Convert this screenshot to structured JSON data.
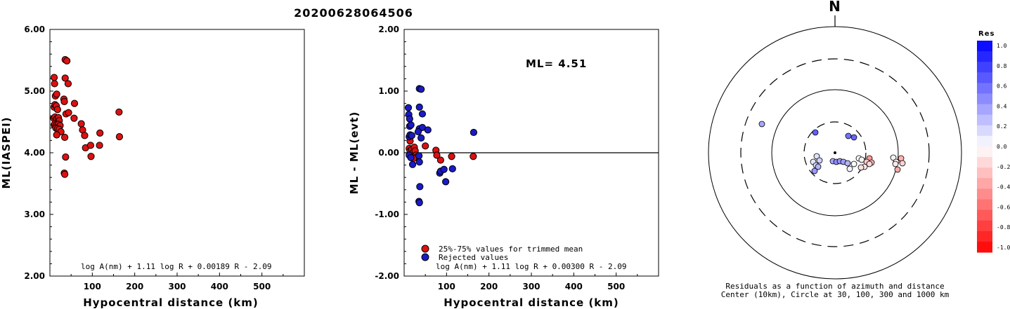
{
  "title": "20200628064506",
  "chart_data": [
    {
      "type": "scatter",
      "ylabel": "ML(IASPEI)",
      "xlabel": "Hypocentral distance (km)",
      "xlim": [
        0,
        600
      ],
      "ylim": [
        2.0,
        6.0
      ],
      "x_ticks": [
        "100",
        "200",
        "300",
        "400",
        "500"
      ],
      "y_ticks": [
        "2.00",
        "3.00",
        "4.00",
        "5.00",
        "6.00"
      ],
      "formula": "log A(nm) + 1.11 log R + 0.00189 R - 2.09",
      "marker_color": "#dd1111",
      "series": [
        {
          "points": [
            [
              10,
              5.22
            ],
            [
              11,
              5.12
            ],
            [
              13,
              4.92
            ],
            [
              16,
              4.95
            ],
            [
              10,
              4.74
            ],
            [
              12,
              4.78
            ],
            [
              15,
              4.76
            ],
            [
              18,
              4.7
            ],
            [
              9,
              4.56
            ],
            [
              12,
              4.58
            ],
            [
              16,
              4.55
            ],
            [
              20,
              4.57
            ],
            [
              22,
              4.52
            ],
            [
              10,
              4.45
            ],
            [
              12,
              4.47
            ],
            [
              16,
              4.46
            ],
            [
              20,
              4.46
            ],
            [
              24,
              4.44
            ],
            [
              14,
              4.4
            ],
            [
              18,
              4.39
            ],
            [
              22,
              4.38
            ],
            [
              26,
              4.34
            ],
            [
              16,
              4.29
            ],
            [
              33,
              4.87
            ],
            [
              34,
              4.83
            ],
            [
              36,
              5.51
            ],
            [
              40,
              5.49
            ],
            [
              36,
              5.21
            ],
            [
              43,
              5.12
            ],
            [
              38,
              4.63
            ],
            [
              44,
              4.65
            ],
            [
              35,
              4.25
            ],
            [
              37,
              3.93
            ],
            [
              34,
              3.67
            ],
            [
              35,
              3.65
            ],
            [
              58,
              4.8
            ],
            [
              57,
              4.56
            ],
            [
              74,
              4.47
            ],
            [
              77,
              4.37
            ],
            [
              82,
              4.28
            ],
            [
              84,
              4.08
            ],
            [
              96,
              4.12
            ],
            [
              97,
              3.94
            ],
            [
              117,
              4.12
            ],
            [
              118,
              4.32
            ],
            [
              163,
              4.66
            ],
            [
              164,
              4.26
            ]
          ]
        }
      ]
    },
    {
      "type": "scatter",
      "ylabel": "ML - ML(evt)",
      "xlabel": "Hypocentral distance (km)",
      "xlim": [
        0,
        600
      ],
      "ylim": [
        -2.0,
        2.0
      ],
      "x_ticks": [
        "100",
        "200",
        "300",
        "400",
        "500"
      ],
      "y_ticks": [
        "-2.00",
        "-1.00",
        "0.00",
        "1.00",
        "2.00"
      ],
      "annotation": "ML= 4.51",
      "formula": "log A(nm) + 1.11 log R + 0.00300 R - 2.09",
      "legend": [
        "25%-75% values for trimmed mean",
        "Rejected values"
      ],
      "colors": {
        "trimmed": "#dd1111",
        "rejected": "#1a1ac8"
      },
      "series": [
        {
          "name": "25%-75% values for trimmed mean",
          "points": [
            [
              12,
              0.07
            ],
            [
              14,
              0.03
            ],
            [
              16,
              -0.04
            ],
            [
              18,
              0.05
            ],
            [
              20,
              -0.02
            ],
            [
              22,
              0.01
            ],
            [
              24,
              0.09
            ],
            [
              26,
              0.03
            ],
            [
              28,
              -0.04
            ],
            [
              30,
              -0.07
            ],
            [
              14,
              0.19
            ],
            [
              22,
              -0.09
            ],
            [
              50,
              0.11
            ],
            [
              75,
              0.04
            ],
            [
              77,
              -0.04
            ],
            [
              86,
              -0.12
            ],
            [
              112,
              -0.06
            ],
            [
              163,
              -0.06
            ]
          ]
        },
        {
          "name": "Rejected values",
          "points": [
            [
              10,
              0.73
            ],
            [
              11,
              0.62
            ],
            [
              13,
              0.43
            ],
            [
              16,
              0.45
            ],
            [
              12,
              0.26
            ],
            [
              14,
              0.29
            ],
            [
              18,
              0.28
            ],
            [
              12,
              -0.04
            ],
            [
              16,
              -0.08
            ],
            [
              20,
              -0.19
            ],
            [
              13,
              0.55
            ],
            [
              36,
              1.04
            ],
            [
              40,
              1.03
            ],
            [
              36,
              0.74
            ],
            [
              43,
              0.63
            ],
            [
              36,
              0.39
            ],
            [
              43,
              0.41
            ],
            [
              33,
              0.34
            ],
            [
              56,
              0.37
            ],
            [
              40,
              0.24
            ],
            [
              35,
              -0.05
            ],
            [
              36,
              -0.15
            ],
            [
              37,
              -0.55
            ],
            [
              35,
              -0.79
            ],
            [
              36,
              -0.81
            ],
            [
              84,
              -0.33
            ],
            [
              86,
              -0.3
            ],
            [
              94,
              -0.27
            ],
            [
              98,
              -0.47
            ],
            [
              114,
              -0.26
            ],
            [
              164,
              0.33
            ]
          ]
        }
      ]
    },
    {
      "type": "scatter",
      "north_label": "N",
      "caption_1": "Residuals as a function of azimuth and distance",
      "caption_2": "Center (10km), Circle at 30, 100, 300 and 1000 km",
      "ring_distances_km": [
        30,
        100,
        300,
        1000
      ],
      "colorbar_title": "Res",
      "colorbar_ticks": [
        "1.0",
        "0.8",
        "0.6",
        "0.4",
        "0.2",
        "0.0",
        "-0.2",
        "-0.4",
        "-0.6",
        "-0.8",
        "-1.0"
      ],
      "stations": [
        {
          "res": 0.35,
          "dx": -104,
          "dy": -41
        },
        {
          "res": 0.62,
          "dx": -28,
          "dy": -29
        },
        {
          "res": 0.55,
          "dx": 19,
          "dy": -24
        },
        {
          "res": 0.6,
          "dx": 27,
          "dy": -22
        },
        {
          "res": 0.12,
          "dx": -26,
          "dy": 5
        },
        {
          "res": 0.18,
          "dx": -22,
          "dy": 11
        },
        {
          "res": 0.1,
          "dx": -31,
          "dy": 13
        },
        {
          "res": 0.15,
          "dx": -27,
          "dy": 18
        },
        {
          "res": 0.3,
          "dx": -24,
          "dy": 20
        },
        {
          "res": 0.4,
          "dx": -29,
          "dy": 26
        },
        {
          "res": 0.35,
          "dx": -3,
          "dy": 12
        },
        {
          "res": 0.45,
          "dx": 2,
          "dy": 13
        },
        {
          "res": 0.42,
          "dx": 7,
          "dy": 12
        },
        {
          "res": 0.38,
          "dx": 12,
          "dy": 13
        },
        {
          "res": 0.3,
          "dx": 18,
          "dy": 15
        },
        {
          "res": 0.05,
          "dx": 21,
          "dy": 23
        },
        {
          "res": 0.02,
          "dx": 27,
          "dy": 16
        },
        {
          "res": 0.0,
          "dx": 34,
          "dy": 8
        },
        {
          "res": -0.05,
          "dx": 38,
          "dy": 10
        },
        {
          "res": -0.08,
          "dx": 42,
          "dy": 20
        },
        {
          "res": -0.12,
          "dx": 37,
          "dy": 21
        },
        {
          "res": -0.4,
          "dx": 49,
          "dy": 8
        },
        {
          "res": -0.22,
          "dx": 45,
          "dy": 13
        },
        {
          "res": -0.3,
          "dx": 52,
          "dy": 14
        },
        {
          "res": -0.15,
          "dx": 49,
          "dy": 16
        },
        {
          "res": 0.05,
          "dx": 83,
          "dy": 7
        },
        {
          "res": -0.05,
          "dx": 87,
          "dy": 13
        },
        {
          "res": -0.1,
          "dx": 86,
          "dy": 16
        },
        {
          "res": -0.3,
          "dx": 94,
          "dy": 8
        },
        {
          "res": -0.18,
          "dx": 96,
          "dy": 15
        },
        {
          "res": -0.35,
          "dx": 89,
          "dy": 24
        }
      ]
    }
  ]
}
